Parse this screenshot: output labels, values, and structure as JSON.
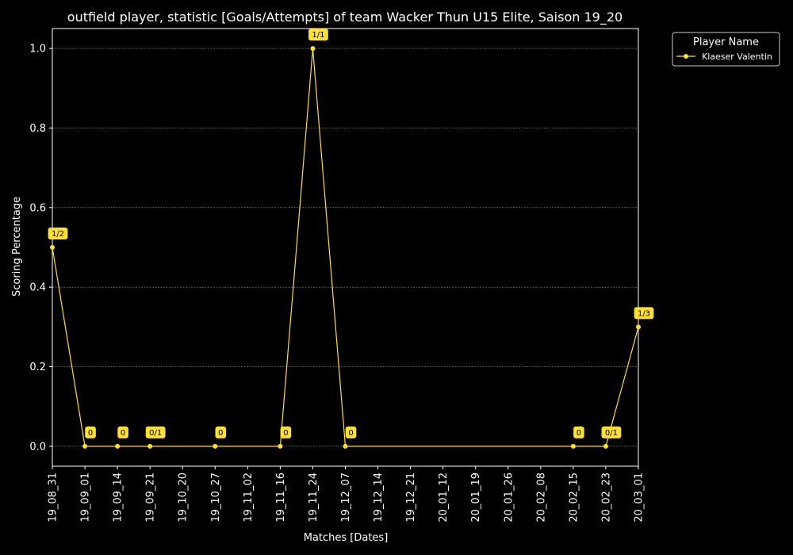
{
  "chart_data": {
    "type": "line",
    "title": "outfield player, statistic [Goals/Attempts] of team Wacker Thun U15 Elite, Saison 19_20",
    "xlabel": "Matches [Dates]",
    "ylabel": "Scoring Percentage",
    "categories": [
      "19_08_31",
      "19_09_01",
      "19_09_14",
      "19_09_21",
      "19_10_20",
      "19_10_27",
      "19_11_02",
      "19_11_16",
      "19_11_24",
      "19_12_07",
      "19_12_14",
      "19_12_21",
      "20_01_12",
      "20_01_19",
      "20_01_26",
      "20_02_08",
      "20_02_15",
      "20_02_23",
      "20_03_01"
    ],
    "ylim": [
      -0.05,
      1.05
    ],
    "yticks": [
      "0.0",
      "0.2",
      "0.4",
      "0.6",
      "0.8",
      "1.0"
    ],
    "grid": "horizontal dotted",
    "legend": {
      "title": "Player Name",
      "placement": "outside top-right"
    },
    "series": [
      {
        "name": "Klaeser Valentin",
        "color": "#ffe033",
        "points": [
          {
            "x": "19_08_31",
            "y": 0.5,
            "label": "1/2"
          },
          {
            "x": "19_09_01",
            "y": 0.0,
            "label": "0"
          },
          {
            "x": "19_09_14",
            "y": 0.0,
            "label": "0"
          },
          {
            "x": "19_09_21",
            "y": 0.0,
            "label": "0/1"
          },
          {
            "x": "19_10_27",
            "y": 0.0,
            "label": "0"
          },
          {
            "x": "19_11_16",
            "y": 0.0,
            "label": "0"
          },
          {
            "x": "19_11_24",
            "y": 1.0,
            "label": "1/1"
          },
          {
            "x": "19_12_07",
            "y": 0.0,
            "label": "0"
          },
          {
            "x": "20_02_15",
            "y": 0.0,
            "label": "0"
          },
          {
            "x": "20_02_23",
            "y": 0.0,
            "label": "0/1"
          },
          {
            "x": "20_03_01",
            "y": 0.3,
            "label": "1/3"
          }
        ]
      }
    ]
  }
}
